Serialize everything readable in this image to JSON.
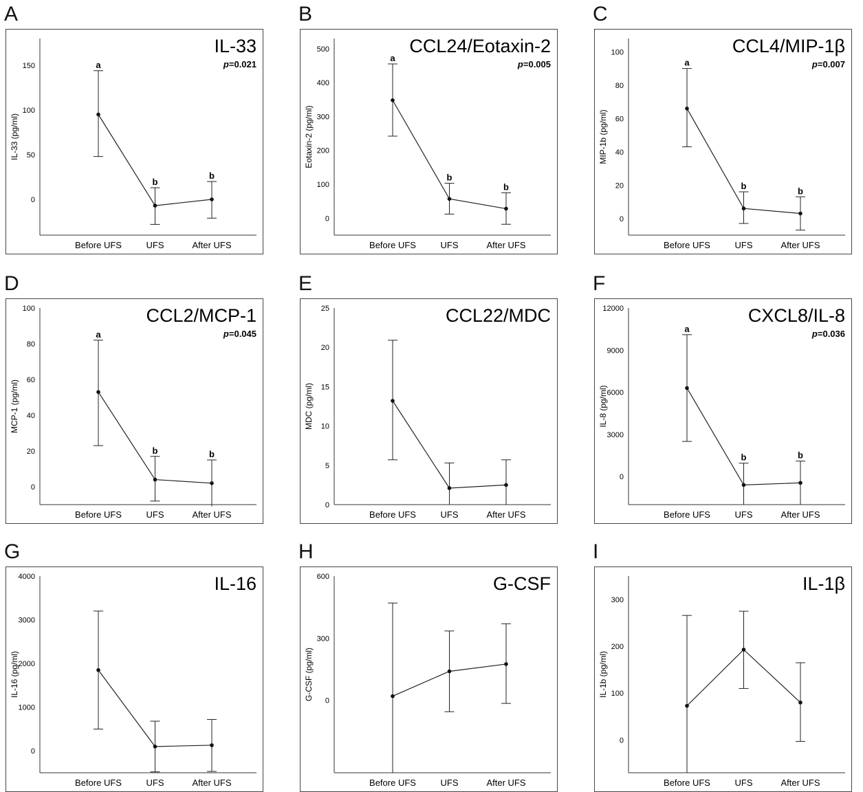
{
  "chart_data": [
    {
      "panel": "A",
      "type": "line",
      "title": "IL-33",
      "p": "=0.021",
      "ylabel": "IL-33 (pg/ml)",
      "categories": [
        "Before UFS",
        "UFS",
        "After UFS"
      ],
      "yticks": [
        0,
        50,
        100,
        150
      ],
      "ylim": [
        -40,
        180
      ],
      "values": [
        95,
        -7,
        0
      ],
      "err_low": [
        48,
        -28,
        -21
      ],
      "err_high": [
        144,
        13,
        20
      ],
      "sig": [
        "a",
        "b",
        "b"
      ]
    },
    {
      "panel": "B",
      "type": "line",
      "title": "CCL24/Eotaxin-2",
      "p": "=0.005",
      "ylabel": "Eotaxin-2 (pg/ml)",
      "categories": [
        "Before UFS",
        "UFS",
        "After UFS"
      ],
      "yticks": [
        0,
        100,
        200,
        300,
        400,
        500
      ],
      "ylim": [
        -50,
        530
      ],
      "values": [
        348,
        57,
        28
      ],
      "err_low": [
        242,
        12,
        -18
      ],
      "err_high": [
        455,
        103,
        75
      ],
      "sig": [
        "a",
        "b",
        "b"
      ]
    },
    {
      "panel": "C",
      "type": "line",
      "title": "CCL4/MIP-1β",
      "p": "=0.007",
      "ylabel": "MIP-1b (pg/ml)",
      "categories": [
        "Before UFS",
        "UFS",
        "After UFS"
      ],
      "yticks": [
        0,
        20,
        40,
        60,
        80,
        100
      ],
      "ylim": [
        -10,
        108
      ],
      "values": [
        66,
        6,
        3
      ],
      "err_low": [
        43,
        -3,
        -7
      ],
      "err_high": [
        90,
        16,
        13
      ],
      "sig": [
        "a",
        "b",
        "b"
      ]
    },
    {
      "panel": "D",
      "type": "line",
      "title": "CCL2/MCP-1",
      "p": "=0.045",
      "ylabel": "MCP-1 (pg/ml)",
      "categories": [
        "Before UFS",
        "UFS",
        "After UFS"
      ],
      "yticks": [
        0,
        20,
        40,
        60,
        80,
        100
      ],
      "ylim": [
        -10,
        100
      ],
      "values": [
        53,
        4,
        2
      ],
      "err_low": [
        23,
        -8,
        -11
      ],
      "err_high": [
        82,
        17,
        15
      ],
      "sig": [
        "a",
        "b",
        "b"
      ]
    },
    {
      "panel": "E",
      "type": "line",
      "title": "CCL22/MDC",
      "p": "",
      "ylabel": "MDC (pg/ml)",
      "categories": [
        "Before UFS",
        "UFS",
        "After UFS"
      ],
      "yticks": [
        0,
        5,
        10,
        15,
        20,
        25
      ],
      "ylim": [
        0,
        25
      ],
      "values": [
        13.2,
        2.1,
        2.5
      ],
      "err_low": [
        5.7,
        0,
        0
      ],
      "err_high": [
        20.9,
        5.3,
        5.7
      ],
      "sig": [
        "",
        "",
        ""
      ]
    },
    {
      "panel": "F",
      "type": "line",
      "title": "CXCL8/IL-8",
      "p": "=0.036",
      "ylabel": "IL-8 (pg/ml)",
      "categories": [
        "Before UFS",
        "UFS",
        "After UFS"
      ],
      "yticks": [
        0,
        3000,
        6000,
        9000,
        12000
      ],
      "ylim": [
        -2000,
        12000
      ],
      "values": [
        6300,
        -600,
        -450
      ],
      "err_low": [
        2500,
        -2000,
        -2000
      ],
      "err_high": [
        10100,
        950,
        1100
      ],
      "sig": [
        "a",
        "b",
        "b"
      ]
    },
    {
      "panel": "G",
      "type": "line",
      "title": "IL-16",
      "p": "",
      "ylabel": "IL-16 (pg/ml)",
      "categories": [
        "Before UFS",
        "UFS",
        "After UFS"
      ],
      "yticks": [
        0,
        1000,
        2000,
        3000,
        4000
      ],
      "ylim": [
        -500,
        4000
      ],
      "values": [
        1850,
        100,
        130
      ],
      "err_low": [
        500,
        -480,
        -470
      ],
      "err_high": [
        3200,
        680,
        720
      ],
      "sig": [
        "",
        "",
        ""
      ]
    },
    {
      "panel": "H",
      "type": "line",
      "title": "G-CSF",
      "p": "",
      "ylabel": "G-CSF (pg/ml)",
      "categories": [
        "Before UFS",
        "UFS",
        "After UFS"
      ],
      "yticks": [
        0,
        300,
        600
      ],
      "ylim": [
        -350,
        600
      ],
      "values": [
        20,
        140,
        175
      ],
      "err_low": [
        -350,
        -55,
        -15
      ],
      "err_high": [
        470,
        335,
        370
      ],
      "sig": [
        "",
        "",
        ""
      ]
    },
    {
      "panel": "I",
      "type": "line",
      "title": "IL-1β",
      "p": "",
      "ylabel": "IL-1b (pg/ml)",
      "categories": [
        "Before UFS",
        "UFS",
        "After UFS"
      ],
      "yticks": [
        0,
        100,
        200,
        300
      ],
      "ylim": [
        -70,
        350
      ],
      "values": [
        73,
        193,
        80
      ],
      "err_low": [
        -70,
        110,
        -3
      ],
      "err_high": [
        266,
        275,
        165
      ],
      "sig": [
        "",
        "",
        ""
      ]
    }
  ]
}
